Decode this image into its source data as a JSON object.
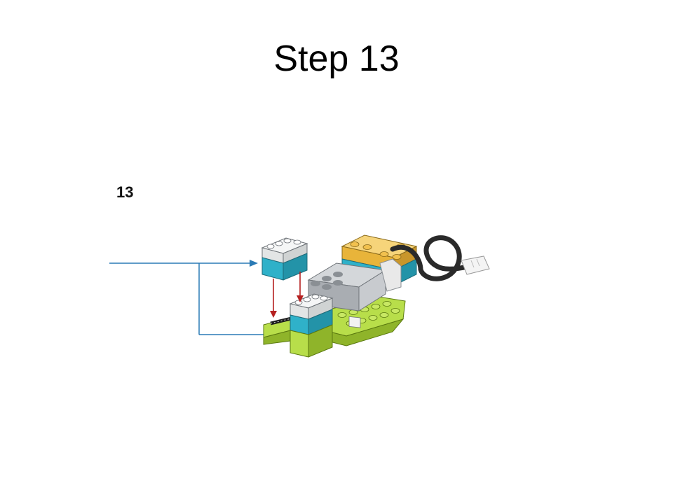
{
  "slide": {
    "title": "Step 13"
  },
  "instruction": {
    "step_number": "13"
  },
  "icons": {
    "callout_arrow": "blue-callout-arrow",
    "insert_arrow": "red-insert-arrow"
  },
  "colors": {
    "callout": "#2a7ab5",
    "insert": "#b52020",
    "teal_brick": "#2fb1c9",
    "white_brick": "#eceeee",
    "lime_brick": "#a6d231",
    "yellow_brick": "#f2c14e",
    "motor_grey": "#b9bcc0",
    "cable": "#2a2a2a"
  }
}
